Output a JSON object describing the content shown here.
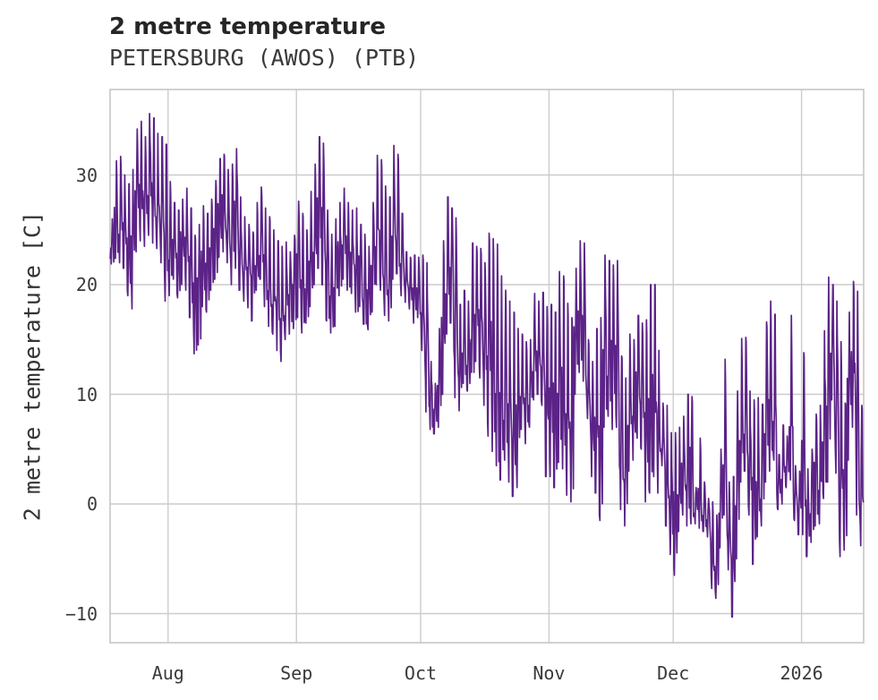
{
  "header": {
    "title": "2 metre temperature",
    "subtitle": "PETERSBURG (AWOS) (PTB)"
  },
  "chart_data": {
    "type": "line",
    "title": "2 metre temperature",
    "subtitle": "PETERSBURG (AWOS) (PTB)",
    "xlabel": "",
    "ylabel": "2 metre temperature [C]",
    "legend": false,
    "grid": true,
    "line_color": "#5b2387",
    "grid_color": "#cccccc",
    "border_color": "#c6c6c6",
    "ylim": [
      -12.65,
      37.8
    ],
    "y_ticks": [
      {
        "v": -10,
        "label": "−10"
      },
      {
        "v": 0,
        "label": "0"
      },
      {
        "v": 10,
        "label": "10"
      },
      {
        "v": 20,
        "label": "20"
      },
      {
        "v": 30,
        "label": "30"
      }
    ],
    "x_ticks": [
      {
        "label": "Aug",
        "date": "2025-08-01"
      },
      {
        "label": "Sep",
        "date": "2025-09-01"
      },
      {
        "label": "Oct",
        "date": "2025-10-01"
      },
      {
        "label": "Nov",
        "date": "2025-11-01"
      },
      {
        "label": "Dec",
        "date": "2025-12-01"
      },
      {
        "label": "2026",
        "date": "2026-01-01"
      }
    ],
    "x_range": {
      "start": "2025-07-18",
      "end": "2026-01-16"
    },
    "series_name": "2 metre temperature [C]",
    "days_date_low_high": [
      [
        "2025-07-18",
        21.9,
        26.0
      ],
      [
        "2025-07-19",
        22.4,
        31.3
      ],
      [
        "2025-07-20",
        22.0,
        31.7
      ],
      [
        "2025-07-21",
        21.5,
        30.0
      ],
      [
        "2025-07-22",
        19.0,
        29.2
      ],
      [
        "2025-07-23",
        17.8,
        30.5
      ],
      [
        "2025-07-24",
        23.0,
        34.2
      ],
      [
        "2025-07-25",
        24.0,
        34.9
      ],
      [
        "2025-07-26",
        23.5,
        33.5
      ],
      [
        "2025-07-27",
        24.5,
        35.6
      ],
      [
        "2025-07-28",
        23.8,
        35.2
      ],
      [
        "2025-07-29",
        23.3,
        33.8
      ],
      [
        "2025-07-30",
        22.0,
        33.5
      ],
      [
        "2025-07-31",
        18.5,
        32.8
      ],
      [
        "2025-08-01",
        19.0,
        29.4
      ],
      [
        "2025-08-02",
        20.5,
        27.5
      ],
      [
        "2025-08-03",
        18.8,
        26.8
      ],
      [
        "2025-08-04",
        20.0,
        27.8
      ],
      [
        "2025-08-05",
        19.5,
        28.8
      ],
      [
        "2025-08-06",
        17.0,
        27.0
      ],
      [
        "2025-08-07",
        13.7,
        24.5
      ],
      [
        "2025-08-08",
        14.5,
        25.5
      ],
      [
        "2025-08-09",
        18.0,
        27.2
      ],
      [
        "2025-08-10",
        17.5,
        26.5
      ],
      [
        "2025-08-11",
        19.5,
        27.8
      ],
      [
        "2025-08-12",
        20.5,
        29.5
      ],
      [
        "2025-08-13",
        22.5,
        31.5
      ],
      [
        "2025-08-14",
        23.0,
        31.9
      ],
      [
        "2025-08-15",
        22.0,
        30.5
      ],
      [
        "2025-08-16",
        20.0,
        31.0
      ],
      [
        "2025-08-17",
        21.5,
        32.4
      ],
      [
        "2025-08-18",
        19.5,
        28.0
      ],
      [
        "2025-08-19",
        18.5,
        26.2
      ],
      [
        "2025-08-20",
        17.9,
        25.5
      ],
      [
        "2025-08-21",
        16.7,
        24.8
      ],
      [
        "2025-08-22",
        19.5,
        27.5
      ],
      [
        "2025-08-23",
        20.5,
        28.9
      ],
      [
        "2025-08-24",
        18.0,
        27.0
      ],
      [
        "2025-08-25",
        16.2,
        26.2
      ],
      [
        "2025-08-26",
        15.5,
        25.0
      ],
      [
        "2025-08-27",
        14.0,
        24.0
      ],
      [
        "2025-08-28",
        13.0,
        23.5
      ],
      [
        "2025-08-29",
        15.0,
        23.9
      ],
      [
        "2025-08-30",
        15.5,
        23.0
      ],
      [
        "2025-08-31",
        16.0,
        24.5
      ],
      [
        "2025-09-01",
        17.0,
        27.6
      ],
      [
        "2025-09-02",
        15.6,
        26.5
      ],
      [
        "2025-09-03",
        16.5,
        25.0
      ],
      [
        "2025-09-04",
        18.0,
        28.5
      ],
      [
        "2025-09-05",
        20.0,
        31.0
      ],
      [
        "2025-09-06",
        21.5,
        33.5
      ],
      [
        "2025-09-07",
        20.0,
        32.9
      ],
      [
        "2025-09-08",
        16.7,
        26.8
      ],
      [
        "2025-09-09",
        15.6,
        24.6
      ],
      [
        "2025-09-10",
        16.2,
        26.0
      ],
      [
        "2025-09-11",
        19.0,
        27.5
      ],
      [
        "2025-09-12",
        20.5,
        28.8
      ],
      [
        "2025-09-13",
        19.5,
        27.5
      ],
      [
        "2025-09-14",
        19.2,
        26.8
      ],
      [
        "2025-09-15",
        17.5,
        27.0
      ],
      [
        "2025-09-16",
        18.0,
        25.5
      ],
      [
        "2025-09-17",
        16.4,
        24.6
      ],
      [
        "2025-09-18",
        15.9,
        23.5
      ],
      [
        "2025-09-19",
        17.5,
        27.5
      ],
      [
        "2025-09-20",
        20.0,
        31.8
      ],
      [
        "2025-09-21",
        19.5,
        31.4
      ],
      [
        "2025-09-22",
        17.2,
        29.0
      ],
      [
        "2025-09-23",
        16.7,
        28.0
      ],
      [
        "2025-09-24",
        20.5,
        32.7
      ],
      [
        "2025-09-25",
        21.0,
        31.9
      ],
      [
        "2025-09-26",
        19.0,
        26.5
      ],
      [
        "2025-09-27",
        18.4,
        23.0
      ],
      [
        "2025-09-28",
        17.8,
        22.5
      ],
      [
        "2025-09-29",
        16.5,
        22.7
      ],
      [
        "2025-09-30",
        17.0,
        22.5
      ],
      [
        "2025-10-01",
        14.0,
        22.7
      ],
      [
        "2025-10-02",
        8.4,
        22.0
      ],
      [
        "2025-10-03",
        6.8,
        13.0
      ],
      [
        "2025-10-04",
        6.4,
        11.0
      ],
      [
        "2025-10-05",
        7.0,
        16.0
      ],
      [
        "2025-10-06",
        10.0,
        24.0
      ],
      [
        "2025-10-07",
        15.5,
        28.0
      ],
      [
        "2025-10-08",
        16.5,
        27.0
      ],
      [
        "2025-10-09",
        9.7,
        26.1
      ],
      [
        "2025-10-10",
        8.5,
        18.2
      ],
      [
        "2025-10-11",
        11.0,
        19.5
      ],
      [
        "2025-10-12",
        10.3,
        18.5
      ],
      [
        "2025-10-13",
        12.0,
        23.8
      ],
      [
        "2025-10-14",
        13.0,
        23.5
      ],
      [
        "2025-10-15",
        11.5,
        23.3
      ],
      [
        "2025-10-16",
        9.0,
        22.0
      ],
      [
        "2025-10-17",
        6.2,
        24.7
      ],
      [
        "2025-10-18",
        4.8,
        24.2
      ],
      [
        "2025-10-19",
        3.5,
        23.7
      ],
      [
        "2025-10-20",
        2.2,
        20.8
      ],
      [
        "2025-10-21",
        4.0,
        19.5
      ],
      [
        "2025-10-22",
        2.0,
        18.5
      ],
      [
        "2025-10-23",
        0.7,
        17.5
      ],
      [
        "2025-10-24",
        1.5,
        16.0
      ],
      [
        "2025-10-25",
        6.8,
        15.5
      ],
      [
        "2025-10-26",
        5.5,
        14.8
      ],
      [
        "2025-10-27",
        7.0,
        15.0
      ],
      [
        "2025-10-28",
        9.5,
        19.2
      ],
      [
        "2025-10-29",
        10.0,
        18.5
      ],
      [
        "2025-10-30",
        9.0,
        19.3
      ],
      [
        "2025-10-31",
        2.5,
        18.0
      ],
      [
        "2025-11-01",
        2.5,
        18.2
      ],
      [
        "2025-11-02",
        1.5,
        17.5
      ],
      [
        "2025-11-03",
        3.8,
        21.2
      ],
      [
        "2025-11-04",
        3.2,
        20.8
      ],
      [
        "2025-11-05",
        0.8,
        18.3
      ],
      [
        "2025-11-06",
        0.2,
        17.0
      ],
      [
        "2025-11-07",
        10.0,
        21.5
      ],
      [
        "2025-11-08",
        12.0,
        24.0
      ],
      [
        "2025-11-09",
        11.2,
        23.8
      ],
      [
        "2025-11-10",
        7.8,
        15.0
      ],
      [
        "2025-11-11",
        2.5,
        13.0
      ],
      [
        "2025-11-12",
        1.0,
        16.0
      ],
      [
        "2025-11-13",
        -1.5,
        17.0
      ],
      [
        "2025-11-14",
        7.0,
        22.7
      ],
      [
        "2025-11-15",
        8.0,
        22.2
      ],
      [
        "2025-11-16",
        6.8,
        21.8
      ],
      [
        "2025-11-17",
        7.0,
        22.2
      ],
      [
        "2025-11-18",
        -0.5,
        13.5
      ],
      [
        "2025-11-19",
        -2.0,
        11.5
      ],
      [
        "2025-11-20",
        3.0,
        15.5
      ],
      [
        "2025-11-21",
        4.0,
        15.0
      ],
      [
        "2025-11-22",
        6.0,
        17.2
      ],
      [
        "2025-11-23",
        5.0,
        16.5
      ],
      [
        "2025-11-24",
        0.2,
        16.8
      ],
      [
        "2025-11-25",
        1.0,
        20.0
      ],
      [
        "2025-11-26",
        2.5,
        20.0
      ],
      [
        "2025-11-27",
        1.0,
        14.0
      ],
      [
        "2025-11-28",
        3.5,
        9.2
      ],
      [
        "2025-11-29",
        -2.0,
        9.0
      ],
      [
        "2025-11-30",
        -4.6,
        6.5
      ],
      [
        "2025-12-01",
        -6.5,
        6.5
      ],
      [
        "2025-12-02",
        -2.5,
        7.0
      ],
      [
        "2025-12-03",
        -1.0,
        8.0
      ],
      [
        "2025-12-04",
        -2.0,
        10.0
      ],
      [
        "2025-12-05",
        -1.8,
        9.8
      ],
      [
        "2025-12-06",
        -1.8,
        1.5
      ],
      [
        "2025-12-07",
        -2.2,
        6.0
      ],
      [
        "2025-12-08",
        -2.5,
        2.0
      ],
      [
        "2025-12-09",
        -3.0,
        0.5
      ],
      [
        "2025-12-10",
        -7.7,
        0.2
      ],
      [
        "2025-12-11",
        -8.6,
        -1.0
      ],
      [
        "2025-12-12",
        -4.0,
        5.0
      ],
      [
        "2025-12-13",
        -1.0,
        13.2
      ],
      [
        "2025-12-14",
        -6.0,
        2.0
      ],
      [
        "2025-12-15",
        -10.3,
        2.5
      ],
      [
        "2025-12-16",
        -5.0,
        10.3
      ],
      [
        "2025-12-17",
        2.0,
        15.1
      ],
      [
        "2025-12-18",
        3.0,
        15.2
      ],
      [
        "2025-12-19",
        -1.0,
        10.3
      ],
      [
        "2025-12-20",
        -5.5,
        9.5
      ],
      [
        "2025-12-21",
        -3.0,
        9.7
      ],
      [
        "2025-12-22",
        -2.0,
        9.1
      ],
      [
        "2025-12-23",
        2.0,
        16.6
      ],
      [
        "2025-12-24",
        3.0,
        18.5
      ],
      [
        "2025-12-25",
        4.0,
        17.3
      ],
      [
        "2025-12-26",
        -0.5,
        4.5
      ],
      [
        "2025-12-27",
        0.0,
        7.2
      ],
      [
        "2025-12-28",
        1.5,
        6.2
      ],
      [
        "2025-12-29",
        2.2,
        17.2
      ],
      [
        "2025-12-30",
        -1.5,
        3.5
      ],
      [
        "2025-12-31",
        -2.8,
        3.0
      ],
      [
        "2026-01-01",
        -2.8,
        13.8
      ],
      [
        "2026-01-02",
        -4.8,
        3.2
      ],
      [
        "2026-01-03",
        -3.5,
        5.0
      ],
      [
        "2026-01-04",
        -2.0,
        8.2
      ],
      [
        "2026-01-05",
        -1.8,
        9.0
      ],
      [
        "2026-01-06",
        0.5,
        15.8
      ],
      [
        "2026-01-07",
        2.0,
        20.7
      ],
      [
        "2026-01-08",
        9.5,
        20.0
      ],
      [
        "2026-01-09",
        2.8,
        18.5
      ],
      [
        "2026-01-10",
        -4.8,
        14.8
      ],
      [
        "2026-01-11",
        -4.2,
        9.2
      ],
      [
        "2026-01-12",
        4.0,
        17.5
      ],
      [
        "2026-01-13",
        7.0,
        20.3
      ],
      [
        "2026-01-14",
        -1.0,
        19.4
      ],
      [
        "2026-01-15",
        -3.8,
        9.0
      ]
    ]
  }
}
